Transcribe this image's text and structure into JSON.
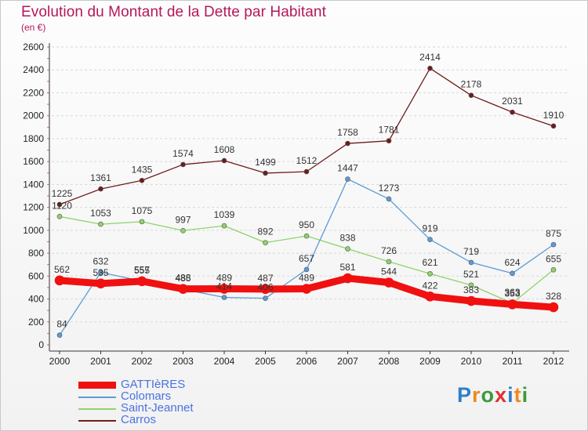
{
  "chart_data": {
    "type": "line",
    "title": "Evolution du Montant de la Dette par Habitant",
    "subtitle": "(en €)",
    "x": [
      "2000",
      "2001",
      "2002",
      "2003",
      "2004",
      "2005",
      "2006",
      "2007",
      "2008",
      "2009",
      "2010",
      "2011",
      "2012"
    ],
    "ylim": [
      0,
      2600
    ],
    "yticks": [
      0,
      200,
      400,
      600,
      800,
      1000,
      1200,
      1400,
      1600,
      1800,
      2000,
      2200,
      2400,
      2600
    ],
    "grid": "horizontal-dashed",
    "legend_position": "bottom-left",
    "series": [
      {
        "name": "GATTIèRES",
        "color": "#f01010",
        "values": [
          562,
          535,
          555,
          488,
          489,
          487,
          489,
          581,
          544,
          422,
          383,
          353,
          328
        ]
      },
      {
        "name": "Colomars",
        "color": "#5b9bd5",
        "values": [
          84,
          632,
          557,
          485,
          414,
          406,
          657,
          1447,
          1273,
          919,
          719,
          624,
          875
        ]
      },
      {
        "name": "Saint-Jeannet",
        "color": "#8fd36a",
        "values": [
          1120,
          1053,
          1075,
          997,
          1039,
          892,
          950,
          838,
          726,
          621,
          521,
          363,
          655
        ]
      },
      {
        "name": "Carros",
        "color": "#6e1c1c",
        "values": [
          1225,
          1361,
          1435,
          1574,
          1608,
          1499,
          1512,
          1758,
          1781,
          2414,
          2178,
          2031,
          1910
        ]
      }
    ]
  },
  "brand": {
    "letters": [
      "P",
      "r",
      "o",
      "x",
      "i",
      "t",
      "i"
    ],
    "colors": [
      "#2f7fc8",
      "#f08a1c",
      "#3a9a3a",
      "#e03030",
      "#2f7fc8",
      "#f08a1c",
      "#3a9a3a"
    ]
  }
}
